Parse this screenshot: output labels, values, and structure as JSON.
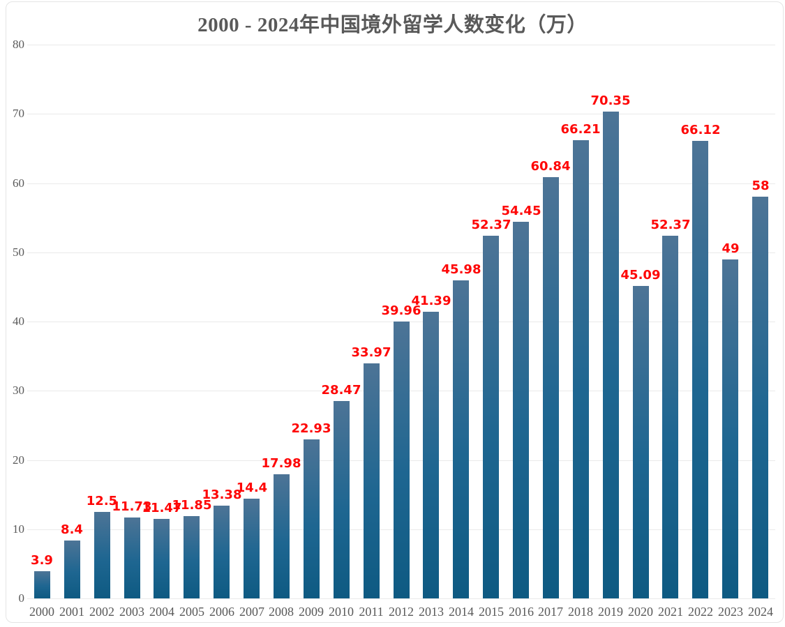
{
  "chart_data": {
    "type": "bar",
    "title": "2000 - 2024年中国境外留学人数变化（万）",
    "categories": [
      "2000",
      "2001",
      "2002",
      "2003",
      "2004",
      "2005",
      "2006",
      "2007",
      "2008",
      "2009",
      "2010",
      "2011",
      "2012",
      "2013",
      "2014",
      "2015",
      "2016",
      "2017",
      "2018",
      "2019",
      "2020",
      "2021",
      "2022",
      "2023",
      "2024"
    ],
    "values": [
      3.9,
      8.4,
      12.5,
      11.73,
      11.47,
      11.85,
      13.38,
      14.4,
      17.98,
      22.93,
      28.47,
      33.97,
      39.96,
      41.39,
      45.98,
      52.37,
      54.45,
      60.84,
      66.21,
      70.35,
      45.09,
      52.37,
      66.12,
      49,
      58
    ],
    "value_labels": [
      "3.9",
      "8.4",
      "12.5",
      "11.73",
      "11.47",
      "11.85",
      "13.38",
      "14.4",
      "17.98",
      "22.93",
      "28.47",
      "33.97",
      "39.96",
      "41.39",
      "45.98",
      "52.37",
      "54.45",
      "60.84",
      "66.21",
      "70.35",
      "45.09",
      "52.37",
      "66.12",
      "49",
      "58"
    ],
    "xlabel": "",
    "ylabel": "",
    "ylim": [
      0,
      80
    ],
    "ytick_interval": 10,
    "ytick_labels": [
      "0",
      "10",
      "20",
      "30",
      "40",
      "50",
      "60",
      "70",
      "80"
    ],
    "grid": true,
    "legend": false,
    "colors": {
      "bar_gradient_top": "#4d7496",
      "bar_gradient_mid": "#1e6691",
      "bar_gradient_bottom": "#0e5a82",
      "value_label": "#fe0606",
      "axis_text": "#595959",
      "title_text": "#595959",
      "gridline": "#eaeaea",
      "frame_border": "#e4e4e4",
      "background": "#ffffff"
    }
  }
}
